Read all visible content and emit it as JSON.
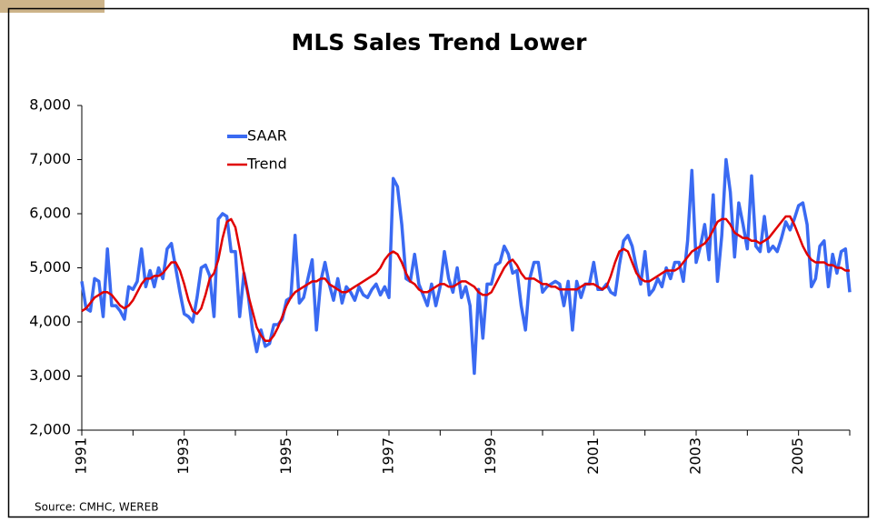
{
  "chart_data": {
    "type": "line",
    "title": "MLS Sales Trend Lower",
    "source": "Source: CMHC, WEREB",
    "categories": [
      "1991",
      null,
      null,
      null,
      null,
      null,
      null,
      null,
      null,
      null,
      null,
      null,
      null,
      null,
      null,
      null,
      null,
      null,
      null,
      null,
      null,
      null,
      null,
      null,
      "1993",
      null,
      null,
      null,
      null,
      null,
      null,
      null,
      null,
      null,
      null,
      null,
      null,
      null,
      null,
      null,
      null,
      null,
      null,
      null,
      null,
      null,
      null,
      null,
      "1995",
      null,
      null,
      null,
      null,
      null,
      null,
      null,
      null,
      null,
      null,
      null,
      null,
      null,
      null,
      null,
      null,
      null,
      null,
      null,
      null,
      null,
      null,
      null,
      "1997",
      null,
      null,
      null,
      null,
      null,
      null,
      null,
      null,
      null,
      null,
      null,
      null,
      null,
      null,
      null,
      null,
      null,
      null,
      null,
      null,
      null,
      null,
      null,
      "1999",
      null,
      null,
      null,
      null,
      null,
      null,
      null,
      null,
      null,
      null,
      null,
      null,
      null,
      null,
      null,
      null,
      null,
      null,
      null,
      null,
      null,
      null,
      null,
      "2001",
      null,
      null,
      null,
      null,
      null,
      null,
      null,
      null,
      null,
      null,
      null,
      null,
      null,
      null,
      null,
      null,
      null,
      null,
      null,
      null,
      null,
      null,
      null,
      "2003",
      null,
      null,
      null,
      null,
      null,
      null,
      null,
      null,
      null,
      null,
      null,
      null,
      null,
      null,
      null,
      null,
      null,
      null,
      null,
      null,
      null,
      null,
      null,
      "2005",
      null,
      null,
      null,
      null,
      null,
      null,
      null,
      null,
      null,
      null,
      null,
      null
    ],
    "series": [
      {
        "name": "SAAR",
        "color": "#3a6af2",
        "values": [
          4750,
          4250,
          4200,
          4800,
          4750,
          4100,
          5350,
          4300,
          4300,
          4200,
          4050,
          4650,
          4600,
          4750,
          5350,
          4650,
          4950,
          4650,
          5000,
          4800,
          5350,
          5450,
          5000,
          4550,
          4150,
          4100,
          4000,
          4450,
          5000,
          5050,
          4850,
          4100,
          5900,
          6000,
          5950,
          5300,
          5300,
          4100,
          4900,
          4500,
          3850,
          3450,
          3850,
          3550,
          3600,
          3950,
          3950,
          4050,
          4400,
          4450,
          5600,
          4350,
          4450,
          4800,
          5150,
          3850,
          4750,
          5100,
          4700,
          4400,
          4800,
          4350,
          4650,
          4550,
          4400,
          4650,
          4500,
          4450,
          4600,
          4700,
          4500,
          4650,
          4450,
          6650,
          6500,
          5800,
          4800,
          4750,
          5250,
          4700,
          4500,
          4300,
          4700,
          4300,
          4650,
          5300,
          4800,
          4550,
          5000,
          4450,
          4650,
          4300,
          3050,
          4600,
          3700,
          4700,
          4700,
          5050,
          5100,
          5400,
          5250,
          4900,
          4950,
          4300,
          3850,
          4800,
          5100,
          5100,
          4550,
          4650,
          4700,
          4750,
          4700,
          4300,
          4750,
          3850,
          4750,
          4450,
          4700,
          4700,
          5100,
          4600,
          4600,
          4700,
          4550,
          4500,
          5050,
          5500,
          5600,
          5400,
          5000,
          4700,
          5300,
          4500,
          4600,
          4800,
          4650,
          5000,
          4800,
          5100,
          5100,
          4750,
          5500,
          6800,
          5100,
          5400,
          5800,
          5150,
          6350,
          4750,
          5600,
          7000,
          6400,
          5200,
          6200,
          5800,
          5350,
          6700,
          5400,
          5300,
          5950,
          5300,
          5400,
          5300,
          5550,
          5850,
          5700,
          5900,
          6150,
          6200,
          5800,
          4650,
          4800,
          5400,
          5500,
          4650,
          5250,
          4900,
          5300,
          5350,
          4550
        ]
      },
      {
        "name": "Trend",
        "color": "#e00000",
        "values": [
          4200,
          4250,
          4350,
          4450,
          4500,
          4550,
          4550,
          4500,
          4400,
          4300,
          4250,
          4300,
          4400,
          4550,
          4700,
          4800,
          4800,
          4850,
          4850,
          4900,
          5000,
          5100,
          5100,
          4950,
          4700,
          4400,
          4200,
          4150,
          4250,
          4500,
          4800,
          4900,
          5150,
          5550,
          5850,
          5900,
          5750,
          5350,
          4900,
          4500,
          4200,
          3900,
          3750,
          3650,
          3650,
          3750,
          3900,
          4100,
          4300,
          4450,
          4550,
          4600,
          4650,
          4700,
          4750,
          4750,
          4800,
          4800,
          4700,
          4650,
          4600,
          4550,
          4550,
          4600,
          4650,
          4700,
          4750,
          4800,
          4850,
          4900,
          5000,
          5150,
          5250,
          5300,
          5250,
          5100,
          4900,
          4750,
          4700,
          4600,
          4550,
          4550,
          4600,
          4650,
          4700,
          4700,
          4650,
          4650,
          4700,
          4750,
          4750,
          4700,
          4650,
          4550,
          4500,
          4500,
          4550,
          4700,
          4850,
          5000,
          5100,
          5150,
          5050,
          4900,
          4800,
          4800,
          4800,
          4750,
          4700,
          4700,
          4650,
          4650,
          4600,
          4600,
          4600,
          4600,
          4600,
          4650,
          4700,
          4700,
          4700,
          4650,
          4600,
          4650,
          4850,
          5100,
          5300,
          5350,
          5300,
          5100,
          4900,
          4800,
          4750,
          4750,
          4800,
          4850,
          4900,
          4950,
          4950,
          4950,
          5000,
          5100,
          5200,
          5300,
          5350,
          5400,
          5450,
          5550,
          5700,
          5850,
          5900,
          5900,
          5800,
          5650,
          5600,
          5550,
          5550,
          5500,
          5500,
          5450,
          5500,
          5550,
          5650,
          5750,
          5850,
          5950,
          5950,
          5800,
          5600,
          5400,
          5250,
          5150,
          5100,
          5100,
          5100,
          5050,
          5050,
          5000,
          5000,
          4950,
          4950
        ]
      }
    ],
    "ylim": [
      2000,
      8000
    ],
    "yticks": [
      {
        "value": 2000,
        "label": "2,000"
      },
      {
        "value": 3000,
        "label": "3,000"
      },
      {
        "value": 4000,
        "label": "4,000"
      },
      {
        "value": 5000,
        "label": "5,000"
      },
      {
        "value": 6000,
        "label": "6,000"
      },
      {
        "value": 7000,
        "label": "7,000"
      },
      {
        "value": 8000,
        "label": "8,000"
      }
    ],
    "grid": false,
    "legend": "upper left"
  }
}
